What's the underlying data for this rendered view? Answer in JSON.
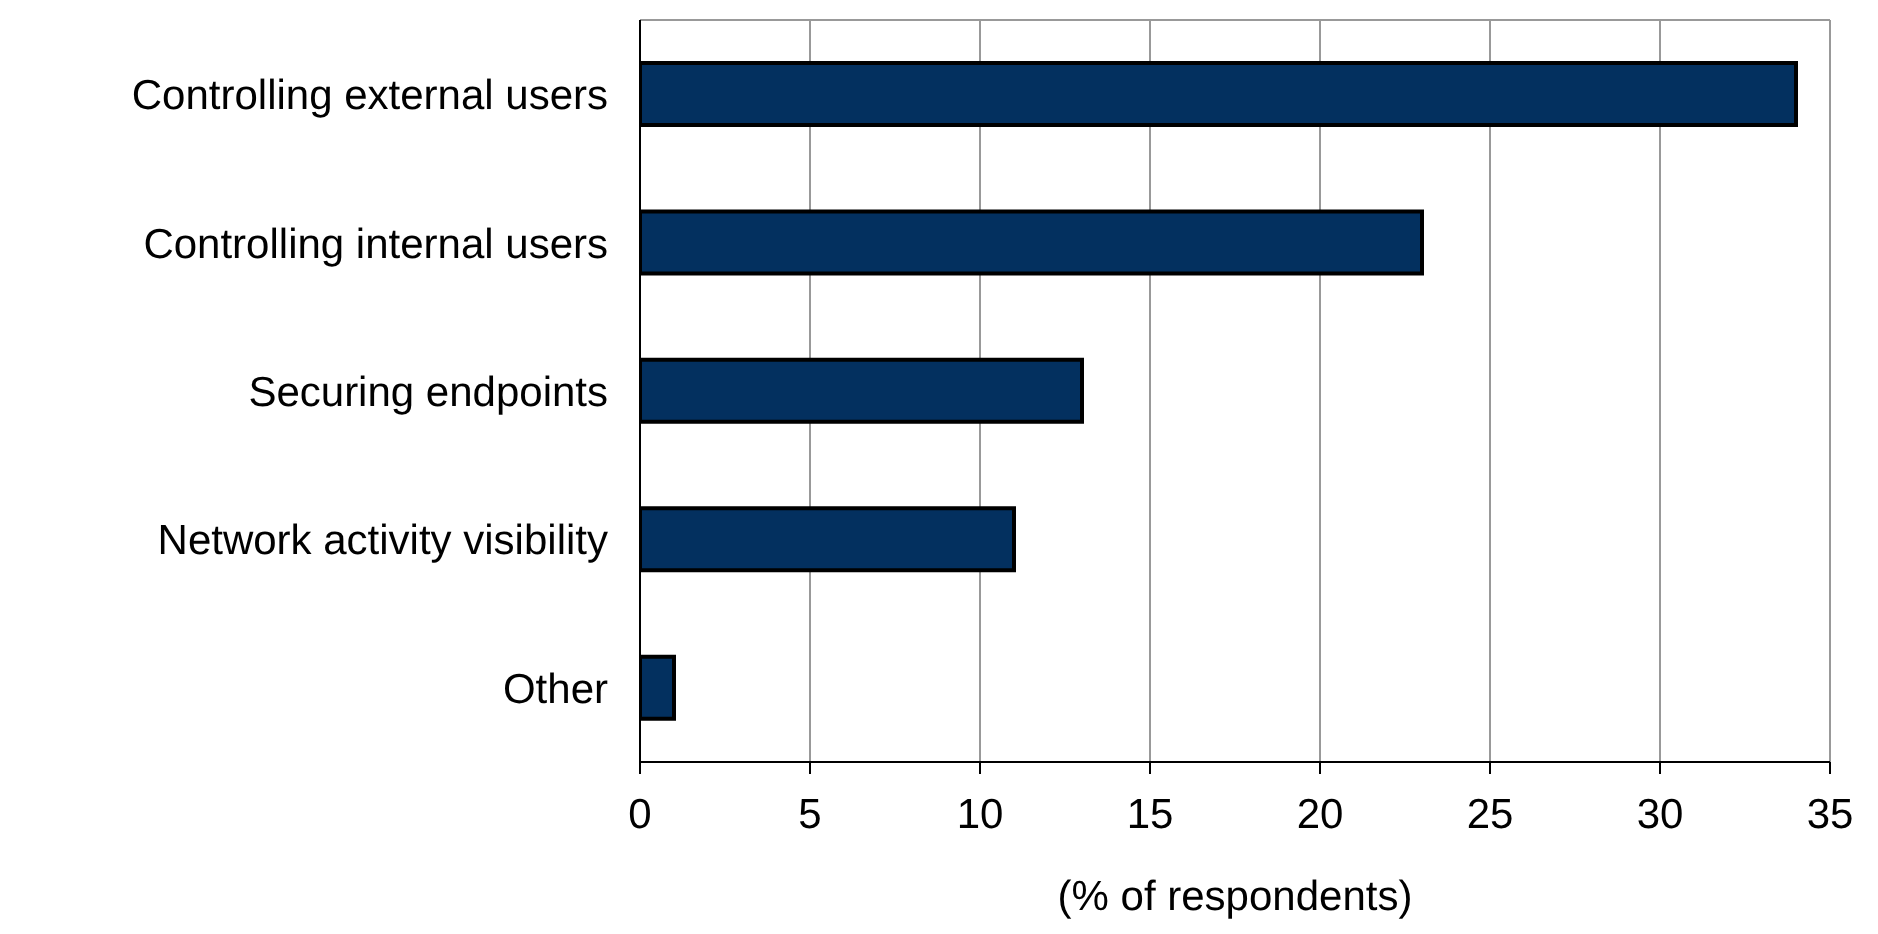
{
  "chart_data": {
    "type": "bar",
    "orientation": "horizontal",
    "categories": [
      "Controlling external users",
      "Controlling internal users",
      "Securing endpoints",
      "Network activity visibility",
      "Other"
    ],
    "values": [
      34,
      23,
      13,
      11,
      1
    ],
    "color": "#03305f",
    "xlabel": "(% of respondents)",
    "xlim": [
      0,
      35
    ],
    "xticks": [
      0,
      5,
      10,
      15,
      20,
      25,
      30,
      35
    ],
    "grid": "x"
  }
}
